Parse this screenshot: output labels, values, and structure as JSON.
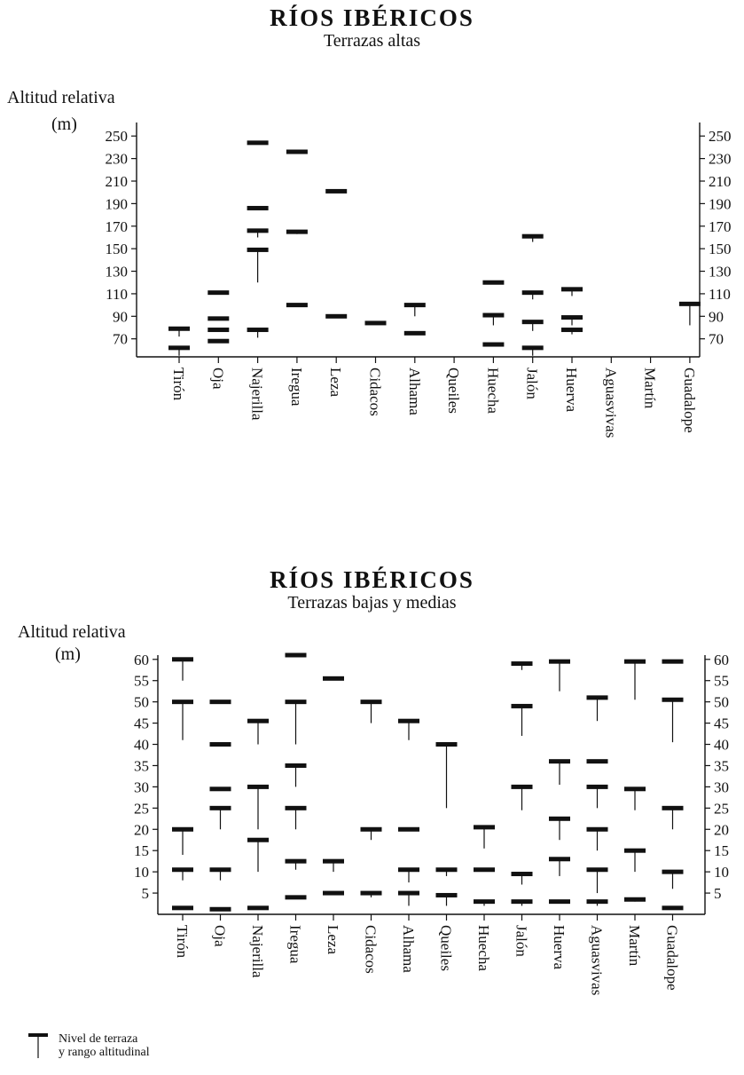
{
  "charts": [
    {
      "title": "RÍOS IBÉRICOS",
      "subtitle": "Terrazas altas",
      "ylabel": "Altitud relativa",
      "unit": "(m)"
    },
    {
      "title": "RÍOS IBÉRICOS",
      "subtitle": "Terrazas bajas y medias",
      "ylabel": "Altitud relativa",
      "unit": "(m)"
    }
  ],
  "legend": {
    "line1": "Nivel de terraza",
    "line2": "y rango altitudinal"
  },
  "chart_data": [
    {
      "type": "range-marker",
      "title": "RÍOS IBÉRICOS",
      "subtitle": "Terrazas altas",
      "ylabel": "Altitud relativa (m)",
      "categories": [
        "Tirón",
        "Oja",
        "Najerilla",
        "Iregua",
        "Leza",
        "Cidacos",
        "Alhama",
        "Queiles",
        "Huecha",
        "Jalón",
        "Huerva",
        "Aguasvivas",
        "Martín",
        "Guadalope"
      ],
      "yticks": [
        70,
        90,
        110,
        130,
        150,
        170,
        190,
        210,
        230,
        250
      ],
      "ylim": [
        54,
        262
      ],
      "terraces": [
        {
          "river": "Tirón",
          "level": 79,
          "low": 72
        },
        {
          "river": "Tirón",
          "level": 62,
          "low": 55
        },
        {
          "river": "Oja",
          "level": 111,
          "low": 111
        },
        {
          "river": "Oja",
          "level": 88,
          "low": 88
        },
        {
          "river": "Oja",
          "level": 78,
          "low": 78
        },
        {
          "river": "Oja",
          "level": 68,
          "low": 68
        },
        {
          "river": "Najerilla",
          "level": 244,
          "low": 244
        },
        {
          "river": "Najerilla",
          "level": 186,
          "low": 186
        },
        {
          "river": "Najerilla",
          "level": 166,
          "low": 160
        },
        {
          "river": "Najerilla",
          "level": 149,
          "low": 120
        },
        {
          "river": "Najerilla",
          "level": 78,
          "low": 71
        },
        {
          "river": "Iregua",
          "level": 236,
          "low": 236
        },
        {
          "river": "Iregua",
          "level": 165,
          "low": 163
        },
        {
          "river": "Iregua",
          "level": 100,
          "low": 100
        },
        {
          "river": "Leza",
          "level": 201,
          "low": 201
        },
        {
          "river": "Leza",
          "level": 90,
          "low": 90
        },
        {
          "river": "Cidacos",
          "level": 84,
          "low": 84
        },
        {
          "river": "Alhama",
          "level": 100,
          "low": 90
        },
        {
          "river": "Alhama",
          "level": 75,
          "low": 75
        },
        {
          "river": "Huecha",
          "level": 120,
          "low": 120
        },
        {
          "river": "Huecha",
          "level": 91,
          "low": 82
        },
        {
          "river": "Huecha",
          "level": 65,
          "low": 65
        },
        {
          "river": "Jalón",
          "level": 161,
          "low": 156
        },
        {
          "river": "Jalón",
          "level": 111,
          "low": 105
        },
        {
          "river": "Jalón",
          "level": 85,
          "low": 77
        },
        {
          "river": "Jalón",
          "level": 62,
          "low": 55
        },
        {
          "river": "Huerva",
          "level": 114,
          "low": 108
        },
        {
          "river": "Huerva",
          "level": 89,
          "low": 82
        },
        {
          "river": "Huerva",
          "level": 78,
          "low": 74
        },
        {
          "river": "Guadalope",
          "level": 101,
          "low": 82
        }
      ]
    },
    {
      "type": "range-marker",
      "title": "RÍOS IBÉRICOS",
      "subtitle": "Terrazas bajas y medias",
      "ylabel": "Altitud relativa (m)",
      "categories": [
        "Tirón",
        "Oja",
        "Najerilla",
        "Iregua",
        "Leza",
        "Cidacos",
        "Alhama",
        "Queiles",
        "Huecha",
        "Jalón",
        "Huerva",
        "Aguasvivas",
        "Martín",
        "Guadalope"
      ],
      "yticks": [
        5,
        10,
        15,
        20,
        25,
        30,
        35,
        40,
        45,
        50,
        55,
        60
      ],
      "ylim": [
        0,
        61
      ],
      "terraces": [
        {
          "river": "Tirón",
          "level": 60,
          "low": 55
        },
        {
          "river": "Tirón",
          "level": 50,
          "low": 41
        },
        {
          "river": "Tirón",
          "level": 20,
          "low": 14
        },
        {
          "river": "Tirón",
          "level": 10.5,
          "low": 8
        },
        {
          "river": "Tirón",
          "level": 1.5,
          "low": 1.5
        },
        {
          "river": "Oja",
          "level": 50,
          "low": 50
        },
        {
          "river": "Oja",
          "level": 40,
          "low": 40
        },
        {
          "river": "Oja",
          "level": 29.5,
          "low": 29.5
        },
        {
          "river": "Oja",
          "level": 25,
          "low": 20
        },
        {
          "river": "Oja",
          "level": 10.5,
          "low": 8
        },
        {
          "river": "Oja",
          "level": 1.2,
          "low": 1.2
        },
        {
          "river": "Najerilla",
          "level": 45.5,
          "low": 40
        },
        {
          "river": "Najerilla",
          "level": 30,
          "low": 20
        },
        {
          "river": "Najerilla",
          "level": 17.5,
          "low": 10
        },
        {
          "river": "Najerilla",
          "level": 1.5,
          "low": 1.5
        },
        {
          "river": "Iregua",
          "level": 61,
          "low": 61
        },
        {
          "river": "Iregua",
          "level": 50,
          "low": 40
        },
        {
          "river": "Iregua",
          "level": 35,
          "low": 30
        },
        {
          "river": "Iregua",
          "level": 25,
          "low": 20
        },
        {
          "river": "Iregua",
          "level": 12.5,
          "low": 10.5
        },
        {
          "river": "Iregua",
          "level": 4,
          "low": 4
        },
        {
          "river": "Leza",
          "level": 55.5,
          "low": 55.5
        },
        {
          "river": "Leza",
          "level": 12.5,
          "low": 10
        },
        {
          "river": "Leza",
          "level": 5,
          "low": 5
        },
        {
          "river": "Cidacos",
          "level": 50,
          "low": 45
        },
        {
          "river": "Cidacos",
          "level": 20,
          "low": 17.5
        },
        {
          "river": "Cidacos",
          "level": 5,
          "low": 4
        },
        {
          "river": "Alhama",
          "level": 45.5,
          "low": 41
        },
        {
          "river": "Alhama",
          "level": 20,
          "low": 20
        },
        {
          "river": "Alhama",
          "level": 10.5,
          "low": 7.5
        },
        {
          "river": "Alhama",
          "level": 5,
          "low": 2
        },
        {
          "river": "Queiles",
          "level": 40,
          "low": 25
        },
        {
          "river": "Queiles",
          "level": 10.5,
          "low": 9
        },
        {
          "river": "Queiles",
          "level": 4.5,
          "low": 2
        },
        {
          "river": "Huecha",
          "level": 20.5,
          "low": 15.5
        },
        {
          "river": "Huecha",
          "level": 10.5,
          "low": 10.5
        },
        {
          "river": "Huecha",
          "level": 3,
          "low": 2
        },
        {
          "river": "Jalón",
          "level": 59,
          "low": 57.5
        },
        {
          "river": "Jalón",
          "level": 49,
          "low": 42
        },
        {
          "river": "Jalón",
          "level": 30,
          "low": 24.5
        },
        {
          "river": "Jalón",
          "level": 9.5,
          "low": 7
        },
        {
          "river": "Jalón",
          "level": 3,
          "low": 2
        },
        {
          "river": "Huerva",
          "level": 59.5,
          "low": 52.5
        },
        {
          "river": "Huerva",
          "level": 36,
          "low": 30.5
        },
        {
          "river": "Huerva",
          "level": 22.5,
          "low": 17.5
        },
        {
          "river": "Huerva",
          "level": 13,
          "low": 9
        },
        {
          "river": "Huerva",
          "level": 3,
          "low": 3
        },
        {
          "river": "Aguasvivas",
          "level": 51,
          "low": 45.5
        },
        {
          "river": "Aguasvivas",
          "level": 36,
          "low": 36
        },
        {
          "river": "Aguasvivas",
          "level": 30,
          "low": 25
        },
        {
          "river": "Aguasvivas",
          "level": 20,
          "low": 15
        },
        {
          "river": "Aguasvivas",
          "level": 10.5,
          "low": 5
        },
        {
          "river": "Aguasvivas",
          "level": 3,
          "low": 2
        },
        {
          "river": "Martín",
          "level": 59.5,
          "low": 50.5
        },
        {
          "river": "Martín",
          "level": 29.5,
          "low": 24.5
        },
        {
          "river": "Martín",
          "level": 15,
          "low": 10
        },
        {
          "river": "Martín",
          "level": 3.5,
          "low": 3
        },
        {
          "river": "Guadalope",
          "level": 59.5,
          "low": 59.5
        },
        {
          "river": "Guadalope",
          "level": 50.5,
          "low": 40.5
        },
        {
          "river": "Guadalope",
          "level": 25,
          "low": 20
        },
        {
          "river": "Guadalope",
          "level": 10,
          "low": 6
        },
        {
          "river": "Guadalope",
          "level": 1.5,
          "low": 1.5
        }
      ]
    }
  ]
}
